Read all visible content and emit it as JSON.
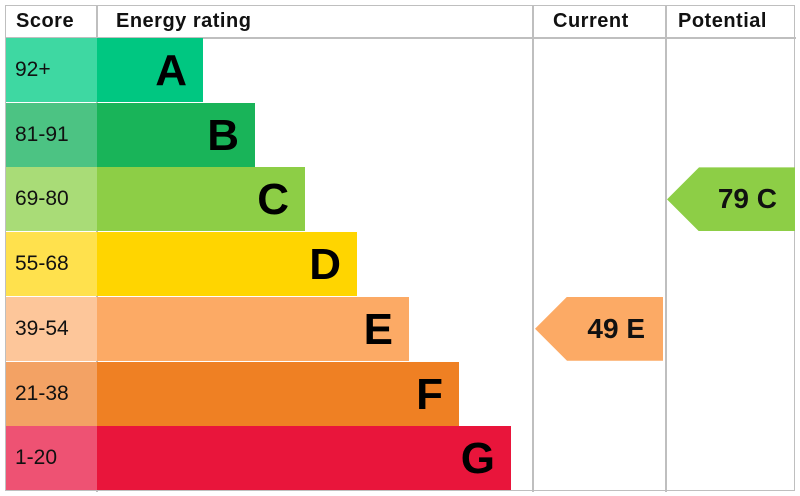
{
  "chart_data": {
    "type": "table",
    "headers": {
      "score": "Score",
      "rating": "Energy rating",
      "current": "Current",
      "potential": "Potential"
    },
    "bands": [
      {
        "score": "92+",
        "letter": "A",
        "color": "#00c781",
        "score_color": "#3ed8a2"
      },
      {
        "score": "81-91",
        "letter": "B",
        "color": "#19b459",
        "score_color": "#4cc383"
      },
      {
        "score": "69-80",
        "letter": "C",
        "color": "#8dce46",
        "score_color": "#a9dc77"
      },
      {
        "score": "55-68",
        "letter": "D",
        "color": "#ffd500",
        "score_color": "#ffe14d"
      },
      {
        "score": "39-54",
        "letter": "E",
        "color": "#fcaa65",
        "score_color": "#fdc69a"
      },
      {
        "score": "21-38",
        "letter": "F",
        "color": "#ef8023",
        "score_color": "#f3a264"
      },
      {
        "score": "1-20",
        "letter": "G",
        "color": "#e9153b",
        "score_color": "#ee5273"
      }
    ],
    "current": {
      "value": 49,
      "band": "E",
      "label": "49 E",
      "color": "#fcaa65"
    },
    "potential": {
      "value": 79,
      "band": "C",
      "label": "79 C",
      "color": "#8dce46"
    }
  }
}
